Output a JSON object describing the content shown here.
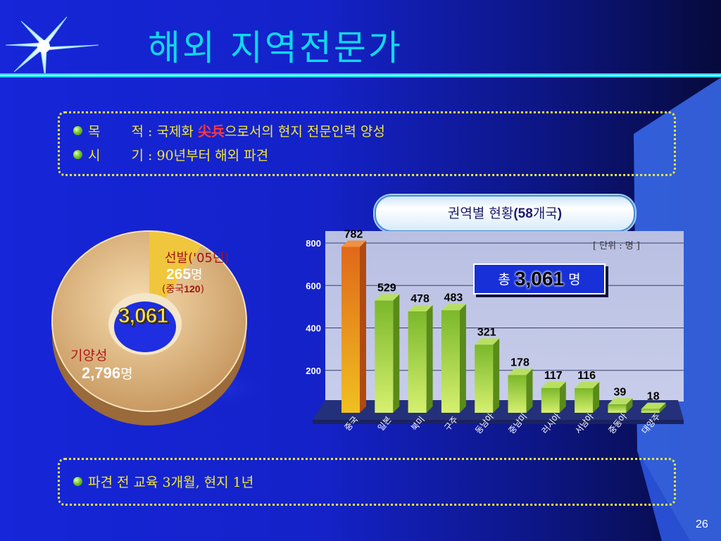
{
  "title": "해외 지역전문가",
  "objectives": [
    {
      "label": "목",
      "label2": "적",
      "pre": " : 국제화 ",
      "highlight": "尖兵",
      "post": "으로서의 현지 전문인력 양성"
    },
    {
      "label": "시",
      "label2": "기",
      "pre": " : 90년부터 해외 파견",
      "highlight": "",
      "post": ""
    }
  ],
  "training": "파견 전 교육 3개월, 현지 1년",
  "pill": {
    "text": "권역별 현황",
    "paren_open": "(",
    "num": "58",
    "suffix": "개국",
    "paren_close": ")"
  },
  "unit": "[ 단위 : 명 ]",
  "total": {
    "prefix": "총",
    "value": "3,061",
    "suffix": "명"
  },
  "donut": {
    "center": "3,061",
    "selected_label": "선발('05년)",
    "selected_value": "265",
    "selected_unit": "명",
    "china_open": "(",
    "china_label": "중국",
    "china_value": "120",
    "china_close": ")",
    "existing_label": "기양성",
    "existing_value": "2,796",
    "existing_unit": "명",
    "colors": {
      "existing": "#d8ae7a",
      "selected": "#f0c63c",
      "center": "#1e2ee0"
    }
  },
  "chart_data": {
    "type": "bar",
    "categories": [
      "중국",
      "일본",
      "북미",
      "구주",
      "동남아",
      "중남미",
      "러시아",
      "서남아",
      "중동아",
      "대양주"
    ],
    "values": [
      782,
      529,
      478,
      483,
      321,
      178,
      117,
      116,
      39,
      18
    ],
    "ylim": [
      0,
      850
    ],
    "yticks": [
      200,
      400,
      600,
      800
    ],
    "grid": true,
    "colors": {
      "first": "#e8761c",
      "rest": "#94cc38"
    }
  },
  "page_number": "26"
}
